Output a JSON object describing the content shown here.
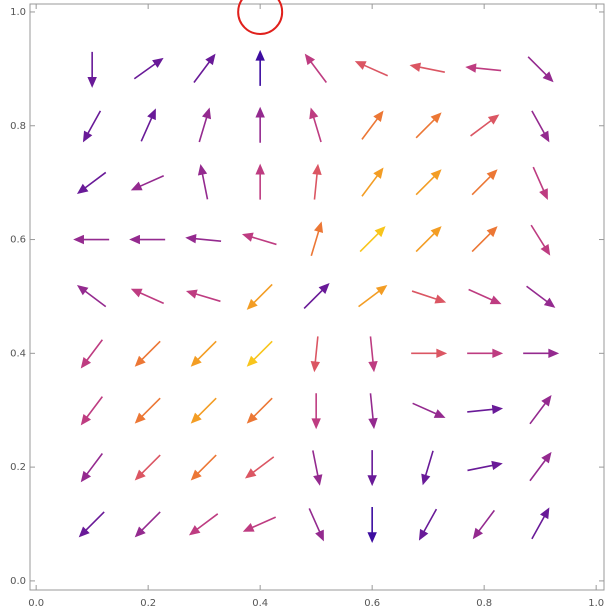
{
  "chart_data": {
    "type": "vector",
    "x": [
      0.1,
      0.2,
      0.3,
      0.4,
      0.5,
      0.6,
      0.7,
      0.8,
      0.9
    ],
    "y": [
      0.1,
      0.2,
      0.3,
      0.4,
      0.5,
      0.6,
      0.7,
      0.8,
      0.9
    ],
    "u": [
      [
        -0.7,
        -0.7,
        -0.8,
        -0.9,
        0.4,
        0,
        -0.5,
        -0.6,
        0.5
      ],
      [
        -0.6,
        -0.7,
        -0.7,
        -0.8,
        0.2,
        0,
        -0.3,
        1,
        0.6
      ],
      [
        -0.6,
        -0.7,
        -0.7,
        -0.7,
        0,
        0.1,
        0.9,
        1,
        0.6
      ],
      [
        -0.6,
        -0.7,
        -0.7,
        -0.7,
        -0.1,
        0.1,
        1,
        1,
        1
      ],
      [
        -0.8,
        -0.9,
        -1,
        -0.7,
        0.7,
        0.8,
        0.9,
        0.9,
        0.8
      ],
      [
        -1,
        -1,
        -1,
        -1,
        0.3,
        0.7,
        0.7,
        0.7,
        0.5
      ],
      [
        -0.8,
        -0.9,
        -0.2,
        0,
        0.1,
        0.6,
        0.7,
        0.7,
        0.4
      ],
      [
        -0.5,
        0.4,
        0.3,
        0,
        -0.3,
        0.6,
        0.7,
        0.8,
        0.5
      ],
      [
        0,
        0.7,
        0.6,
        0,
        -0.6,
        -0.9,
        -1,
        -1,
        0.7
      ]
    ],
    "v": [
      [
        -0.7,
        -0.7,
        -0.6,
        -0.4,
        -0.9,
        -1,
        -0.9,
        -0.8,
        0.9
      ],
      [
        -0.8,
        -0.7,
        -0.7,
        -0.6,
        -1,
        -1,
        -1,
        0.2,
        0.8
      ],
      [
        -0.8,
        -0.7,
        -0.7,
        -0.7,
        -1,
        -1,
        -0.4,
        0.1,
        0.8
      ],
      [
        -0.8,
        -0.7,
        -0.7,
        -0.7,
        -1,
        -1,
        0,
        0,
        0
      ],
      [
        0.6,
        0.4,
        0.3,
        -0.7,
        0.7,
        0.6,
        -0.3,
        -0.4,
        -0.6
      ],
      [
        0,
        0,
        0.1,
        0.3,
        1,
        0.7,
        0.7,
        0.7,
        -0.8
      ],
      [
        -0.6,
        -0.4,
        1,
        1,
        1,
        0.8,
        0.7,
        0.7,
        -0.9
      ],
      [
        -0.9,
        0.9,
        1,
        1,
        1,
        0.8,
        0.7,
        0.6,
        -0.9
      ],
      [
        -1,
        0.5,
        0.8,
        1,
        0.8,
        0.4,
        0.2,
        0.1,
        -0.7
      ]
    ],
    "magnitude": [
      [
        0.3,
        0.4,
        0.5,
        0.5,
        0.4,
        0.2,
        0.3,
        0.4,
        0.3
      ],
      [
        0.4,
        0.6,
        0.7,
        0.6,
        0.4,
        0.3,
        0.3,
        0.3,
        0.4
      ],
      [
        0.5,
        0.7,
        0.8,
        0.7,
        0.5,
        0.4,
        0.4,
        0.3,
        0.4
      ],
      [
        0.5,
        0.7,
        0.8,
        0.9,
        0.6,
        0.5,
        0.6,
        0.5,
        0.4
      ],
      [
        0.4,
        0.5,
        0.5,
        0.8,
        0.3,
        0.8,
        0.6,
        0.5,
        0.4
      ],
      [
        0.4,
        0.4,
        0.4,
        0.5,
        0.7,
        0.9,
        0.8,
        0.7,
        0.5
      ],
      [
        0.3,
        0.4,
        0.4,
        0.5,
        0.6,
        0.8,
        0.8,
        0.7,
        0.5
      ],
      [
        0.3,
        0.3,
        0.4,
        0.4,
        0.5,
        0.7,
        0.7,
        0.6,
        0.4
      ],
      [
        0.3,
        0.3,
        0.3,
        0.2,
        0.5,
        0.6,
        0.6,
        0.5,
        0.4
      ]
    ],
    "magnitude_range": [
      0.2,
      0.9
    ],
    "colorscale": [
      "#3d0ca0",
      "#8a2592",
      "#d3457a",
      "#f07f2a",
      "#f8c51c"
    ],
    "highlight": {
      "x": 0.4,
      "y": 1.0,
      "color": "#e0201c"
    },
    "xlim": [
      -0.011,
      1.014
    ],
    "ylim": [
      -0.016,
      1.014
    ],
    "xticks": [
      {
        "value": 0,
        "label": "0.0"
      },
      0.2,
      0.4,
      0.6,
      0.8,
      {
        "value": 1,
        "label": "1.0"
      }
    ],
    "yticks": [
      {
        "value": 0,
        "label": "0.0"
      },
      0.2,
      0.4,
      0.6,
      0.8,
      {
        "value": 1,
        "label": "1.0"
      }
    ]
  }
}
